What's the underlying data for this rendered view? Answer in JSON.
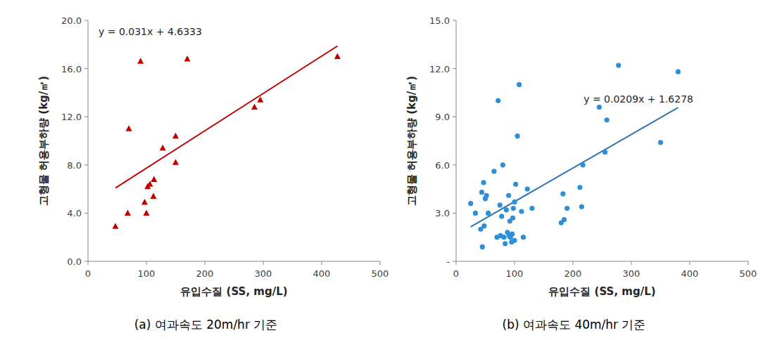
{
  "chart_data": [
    {
      "type": "scatter",
      "title": "(a) 여과속도 20m/hr 기준",
      "x_label": "유입수질 (SS, mg/L)",
      "y_label": "고형물 허용부하량 (kg/㎡)",
      "x": [
        47,
        68,
        70,
        90,
        97,
        100,
        102,
        106,
        112,
        113,
        128,
        150,
        150,
        170,
        285,
        295,
        427
      ],
      "values": [
        2.9,
        4.0,
        11.0,
        16.6,
        4.9,
        4.0,
        6.2,
        6.4,
        5.4,
        6.8,
        9.4,
        8.2,
        10.4,
        16.8,
        12.8,
        13.4,
        17.0
      ],
      "color": "#c00000",
      "marker": "triangle",
      "trendline": {
        "slope": 0.031,
        "intercept": 4.6333,
        "label": "y = 0.031x + 4.6333",
        "color": "#c00000"
      },
      "xlim": [
        0,
        500
      ],
      "xticks": [
        0,
        100,
        200,
        300,
        400,
        500
      ],
      "ylim": [
        0,
        20
      ],
      "yticks": [
        {
          "value": 0,
          "label": "0.0"
        },
        {
          "value": 4,
          "label": "4.0"
        },
        {
          "value": 8,
          "label": "8.0"
        },
        {
          "value": 12,
          "label": "12.0"
        },
        {
          "value": 16,
          "label": "16.0"
        },
        {
          "value": 20,
          "label": "20.0"
        }
      ],
      "grid": false
    },
    {
      "type": "scatter",
      "title": "(b) 여과속도 40m/hr 기준",
      "x_label": "유입수질 (SS, mg/L)",
      "y_label": "고형물 허용부하량 (kg/㎡)",
      "x": [
        25,
        33,
        42,
        44,
        45,
        47,
        48,
        50,
        52,
        55,
        65,
        70,
        72,
        75,
        76,
        78,
        80,
        82,
        84,
        86,
        88,
        90,
        91,
        92,
        93,
        95,
        96,
        97,
        98,
        100,
        100,
        102,
        105,
        108,
        112,
        115,
        122,
        130,
        180,
        183,
        185,
        190,
        212,
        215,
        217,
        245,
        255,
        258,
        278,
        350,
        380
      ],
      "values": [
        3.6,
        3.0,
        2.0,
        4.3,
        0.9,
        4.9,
        2.2,
        3.9,
        4.1,
        3.0,
        5.6,
        1.5,
        10.0,
        3.5,
        1.6,
        2.8,
        6.0,
        1.5,
        1.1,
        3.2,
        1.8,
        4.1,
        1.6,
        2.5,
        1.5,
        1.2,
        1.7,
        2.7,
        3.3,
        3.7,
        1.3,
        4.8,
        7.8,
        11.0,
        3.1,
        1.5,
        4.5,
        3.3,
        2.4,
        4.2,
        2.6,
        3.3,
        4.6,
        3.4,
        6.0,
        9.6,
        6.8,
        8.8,
        12.2,
        7.4,
        11.8
      ],
      "color": "#2e8fd6",
      "marker": "circle",
      "trendline": {
        "slope": 0.0209,
        "intercept": 1.6278,
        "label": "y = 0.0209x + 1.6278",
        "color": "#2e75b6"
      },
      "xlim": [
        0,
        500
      ],
      "xticks": [
        0,
        100,
        200,
        300,
        400,
        500
      ],
      "ylim": [
        0,
        15
      ],
      "yticks": [
        {
          "value": 0,
          "label": "-"
        },
        {
          "value": 3,
          "label": "3.0"
        },
        {
          "value": 6,
          "label": "6.0"
        },
        {
          "value": 9,
          "label": "9.0"
        },
        {
          "value": 12,
          "label": "12.0"
        },
        {
          "value": 15,
          "label": "15.0"
        }
      ],
      "grid": false
    }
  ]
}
